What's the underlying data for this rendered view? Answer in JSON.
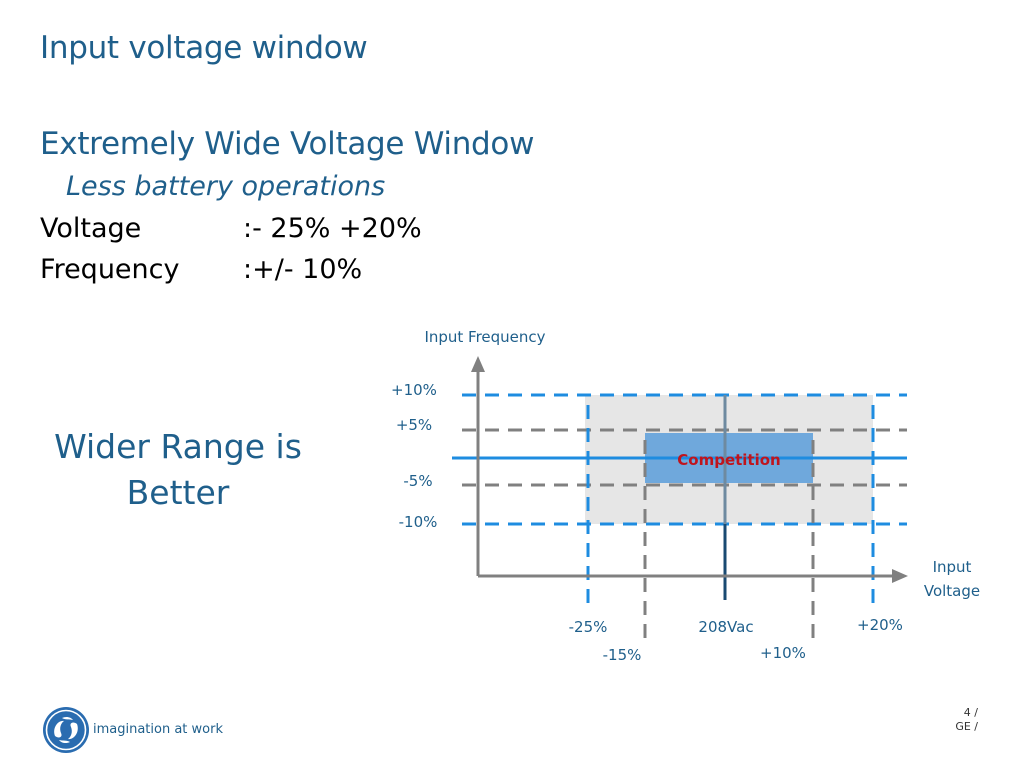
{
  "slide": {
    "title": "Input voltage window",
    "heading": "Extremely Wide Voltage Window",
    "subheading": "Less battery operations",
    "specs": [
      {
        "label": "Voltage",
        "value": ":- 25% +20%"
      },
      {
        "label": "Frequency",
        "value": ":+/- 10%"
      }
    ],
    "callout_line1": "Wider Range is",
    "callout_line2": "Better"
  },
  "diagram": {
    "y_axis_label": "Input Frequency",
    "x_axis_label_line1": "Input",
    "x_axis_label_line2": "Voltage",
    "freq_labels": {
      "p10": "+10%",
      "p5": "+5%",
      "m5": "-5%",
      "m10": "-10%"
    },
    "volt_labels": {
      "m25": "-25%",
      "m15": "-15%",
      "nominal": "208Vac",
      "p10": "+10%",
      "p20": "+20%"
    },
    "competition_label": "Competition",
    "colors": {
      "ge_range": "#1e8ce0",
      "competition_range": "#808080",
      "ge_area": "#e6e6e6",
      "competition_area": "#6fa8dc",
      "axis": "#808080"
    }
  },
  "footer": {
    "logo_text": "imagination at work",
    "page_line1": "4 /",
    "page_line2": "GE /"
  }
}
